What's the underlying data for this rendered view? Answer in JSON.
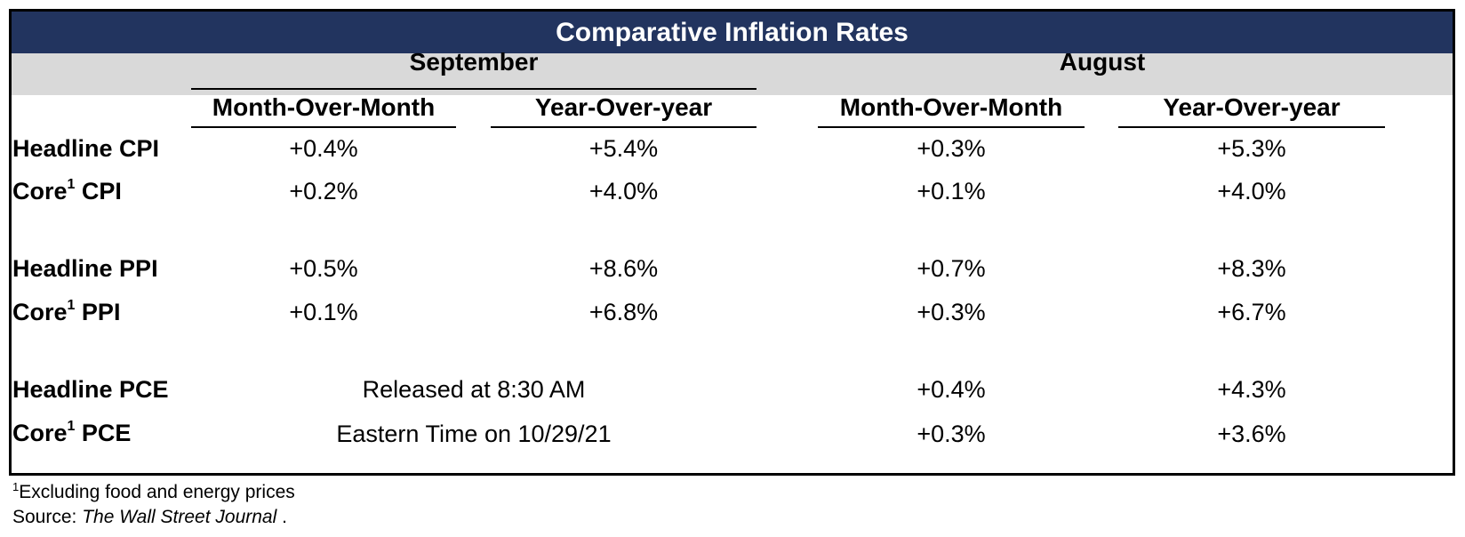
{
  "title": "Comparative Inflation Rates",
  "months": {
    "september": "September",
    "august": "August"
  },
  "col_headers": {
    "sep_mom": "Month-Over-Month",
    "sep_yoy": "Year-Over-year",
    "aug_mom": "Month-Over-Month",
    "aug_yoy": "Year-Over-year"
  },
  "rows": [
    {
      "prefix": "Headline",
      "sup": "",
      "suffix": " CPI",
      "sep_mom": "+0.4%",
      "sep_yoy": "+5.4%",
      "aug_mom": "+0.3%",
      "aug_yoy": "+5.3%"
    },
    {
      "prefix": "Core",
      "sup": "1",
      "suffix": " CPI",
      "sep_mom": "+0.2%",
      "sep_yoy": "+4.0%",
      "aug_mom": "+0.1%",
      "aug_yoy": "+4.0%"
    },
    {
      "prefix": "Headline",
      "sup": "",
      "suffix": " PPI",
      "sep_mom": "+0.5%",
      "sep_yoy": "+8.6%",
      "aug_mom": "+0.7%",
      "aug_yoy": "+8.3%"
    },
    {
      "prefix": "Core",
      "sup": "1",
      "suffix": " PPI",
      "sep_mom": "+0.1%",
      "sep_yoy": "+6.8%",
      "aug_mom": "+0.3%",
      "aug_yoy": "+6.7%"
    },
    {
      "prefix": "Headline",
      "sup": "",
      "suffix": " PCE",
      "aug_mom": "+0.4%",
      "aug_yoy": "+4.3%"
    },
    {
      "prefix": "Core",
      "sup": "1",
      "suffix": " PCE",
      "aug_mom": "+0.3%",
      "aug_yoy": "+3.6%"
    }
  ],
  "pce_note": {
    "line1": "Released at 8:30 AM",
    "line2": "Eastern Time on 10/29/21"
  },
  "footnotes": {
    "marker": "1",
    "excluding": "Excluding food and energy prices",
    "source_prefix": "Source: ",
    "source_name": "The Wall Street Journal",
    "source_suffix": " ."
  }
}
